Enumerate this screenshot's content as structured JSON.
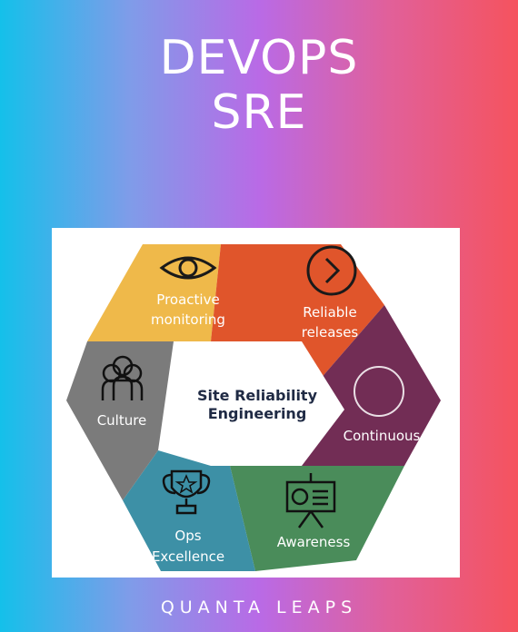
{
  "header": {
    "line1": "DEVOPS",
    "line2": "SRE"
  },
  "diagram": {
    "center": {
      "line1": "Site Reliability",
      "line2": "Engineering"
    },
    "segments": [
      {
        "line1": "Proactive",
        "line2": "monitoring",
        "icon": "eye-icon",
        "color": "#efb94a"
      },
      {
        "line1": "Reliable",
        "line2": "releases",
        "icon": "chevron-right-circle-icon",
        "color": "#e0552b"
      },
      {
        "line1": "Continuous",
        "icon": "circle-icon",
        "color": "#722d55"
      },
      {
        "line1": "Awareness",
        "icon": "presentation-board-icon",
        "color": "#4a8c5a"
      },
      {
        "line1": "Ops",
        "line2": "Excellence",
        "icon": "trophy-star-icon",
        "color": "#3d90a6"
      },
      {
        "line1": "Culture",
        "icon": "people-group-icon",
        "color": "#7b7b7b"
      }
    ]
  },
  "footer": {
    "brand": "QUANTA LEAPS"
  }
}
